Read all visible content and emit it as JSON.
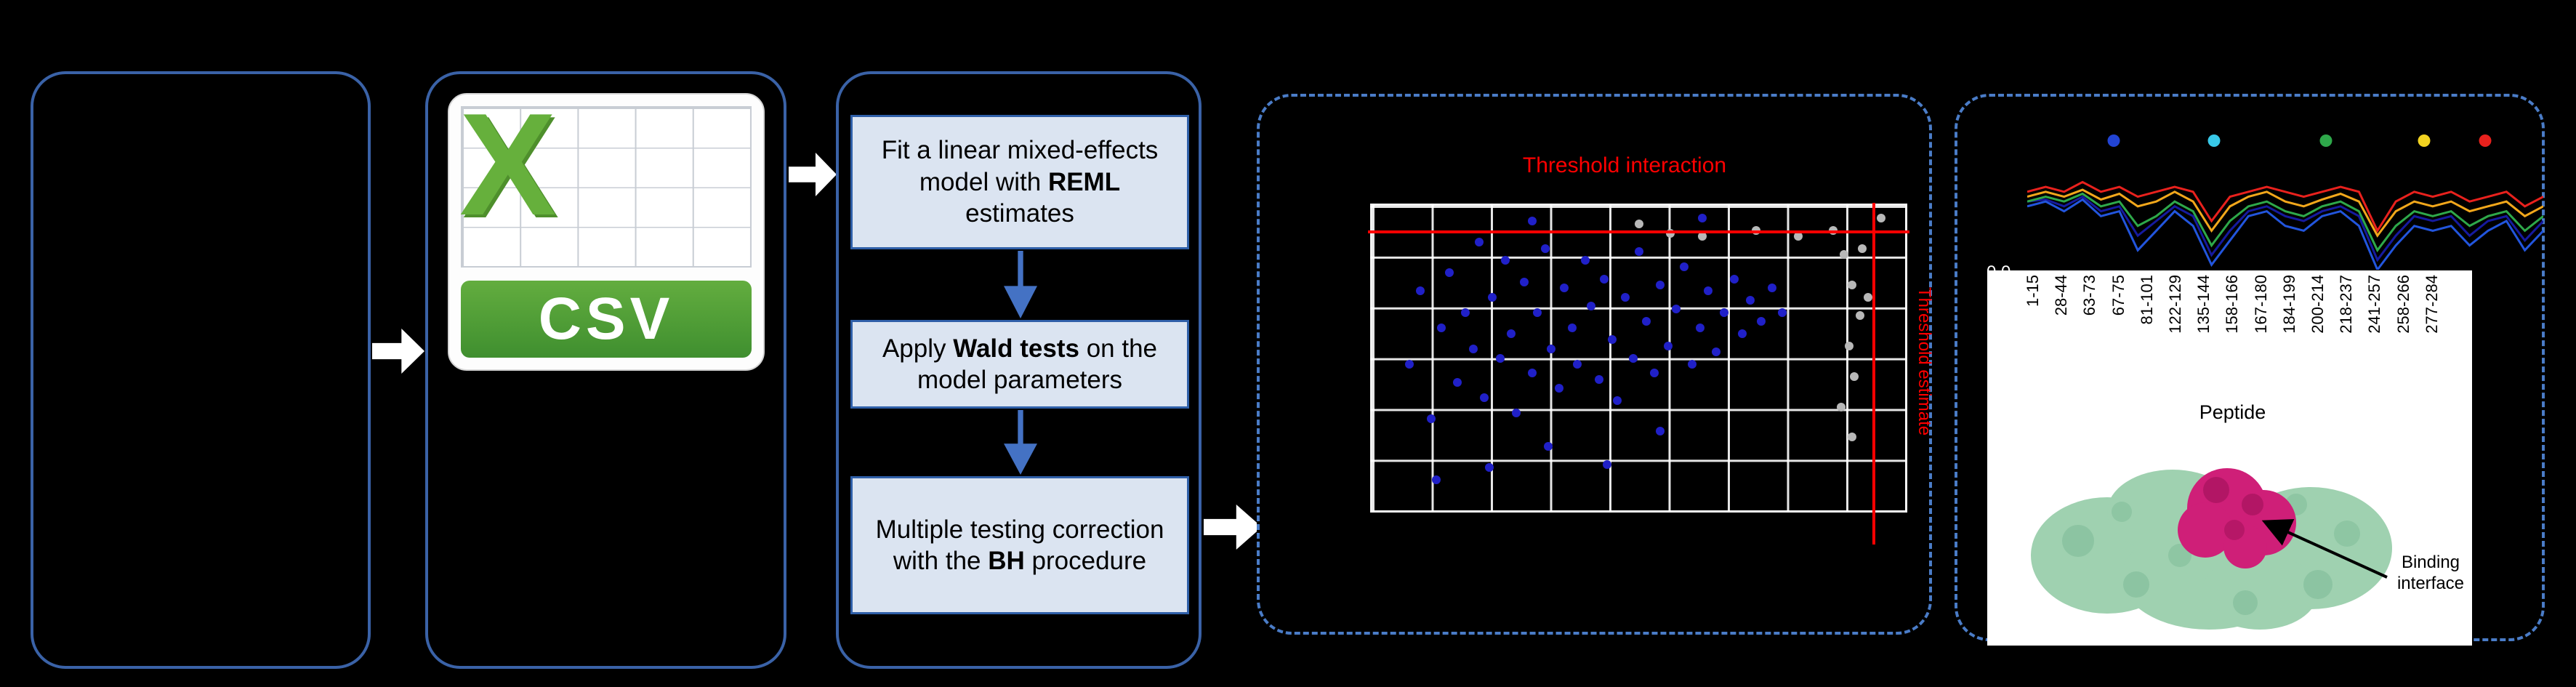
{
  "colors": {
    "panel_border": "#3a62a7",
    "dashed_border": "#4a7cc7",
    "step_fill": "#dbe4f1",
    "step_border": "#2f5fa8",
    "arrow_blue": "#4472c4",
    "threshold_red": "#ff0000",
    "csv_green": "#55a030"
  },
  "flow": {
    "csv": {
      "letter": "X",
      "label": "CSV"
    },
    "steps": [
      {
        "pre": "Fit a linear mixed-effects model with ",
        "bold": "REML",
        "post": " estimates"
      },
      {
        "pre": "Apply ",
        "bold": "Wald tests",
        "post": " on the model parameters"
      },
      {
        "pre": "Multiple testing correction with the ",
        "bold": "BH",
        "post": " procedure"
      }
    ]
  },
  "protein": {
    "annotation": "Binding interface"
  },
  "chart_data": [
    {
      "type": "scatter",
      "title": "Threshold interaction",
      "side_label": "Threshold estimate",
      "coords": "fraction of plot area, y measured from top",
      "grid": true,
      "thresholds": {
        "horizontal_y": 0.08,
        "vertical_x": 0.938
      },
      "series": [
        {
          "name": "points-blue",
          "color": "#2020c8",
          "points": [
            [
              0.07,
              0.52
            ],
            [
              0.09,
              0.28
            ],
            [
              0.11,
              0.7
            ],
            [
              0.13,
              0.4
            ],
            [
              0.145,
              0.22
            ],
            [
              0.16,
              0.58
            ],
            [
              0.175,
              0.35
            ],
            [
              0.19,
              0.47
            ],
            [
              0.2,
              0.12
            ],
            [
              0.21,
              0.63
            ],
            [
              0.225,
              0.3
            ],
            [
              0.24,
              0.5
            ],
            [
              0.25,
              0.18
            ],
            [
              0.26,
              0.42
            ],
            [
              0.27,
              0.68
            ],
            [
              0.285,
              0.25
            ],
            [
              0.3,
              0.55
            ],
            [
              0.31,
              0.35
            ],
            [
              0.325,
              0.14
            ],
            [
              0.335,
              0.47
            ],
            [
              0.35,
              0.6
            ],
            [
              0.36,
              0.27
            ],
            [
              0.375,
              0.4
            ],
            [
              0.385,
              0.52
            ],
            [
              0.4,
              0.18
            ],
            [
              0.41,
              0.33
            ],
            [
              0.425,
              0.57
            ],
            [
              0.435,
              0.24
            ],
            [
              0.45,
              0.44
            ],
            [
              0.46,
              0.64
            ],
            [
              0.475,
              0.3
            ],
            [
              0.49,
              0.5
            ],
            [
              0.5,
              0.15
            ],
            [
              0.515,
              0.38
            ],
            [
              0.53,
              0.55
            ],
            [
              0.54,
              0.26
            ],
            [
              0.555,
              0.46
            ],
            [
              0.57,
              0.34
            ],
            [
              0.585,
              0.2
            ],
            [
              0.6,
              0.52
            ],
            [
              0.615,
              0.4
            ],
            [
              0.63,
              0.28
            ],
            [
              0.645,
              0.48
            ],
            [
              0.66,
              0.35
            ],
            [
              0.68,
              0.24
            ],
            [
              0.695,
              0.42
            ],
            [
              0.71,
              0.31
            ],
            [
              0.73,
              0.38
            ],
            [
              0.75,
              0.27
            ],
            [
              0.77,
              0.35
            ],
            [
              0.54,
              0.74
            ],
            [
              0.33,
              0.79
            ],
            [
              0.22,
              0.86
            ],
            [
              0.12,
              0.9
            ],
            [
              0.44,
              0.85
            ],
            [
              0.3,
              0.05
            ],
            [
              0.62,
              0.04
            ]
          ]
        },
        {
          "name": "points-gray",
          "color": "#b8b8b8",
          "points": [
            [
              0.865,
              0.08
            ],
            [
              0.885,
              0.16
            ],
            [
              0.9,
              0.26
            ],
            [
              0.915,
              0.36
            ],
            [
              0.895,
              0.46
            ],
            [
              0.905,
              0.56
            ],
            [
              0.92,
              0.14
            ],
            [
              0.88,
              0.66
            ],
            [
              0.9,
              0.76
            ],
            [
              0.93,
              0.3
            ],
            [
              0.8,
              0.1
            ],
            [
              0.72,
              0.08
            ],
            [
              0.62,
              0.1
            ],
            [
              0.955,
              0.04
            ],
            [
              0.5,
              0.06
            ],
            [
              0.56,
              0.09
            ]
          ]
        }
      ]
    },
    {
      "type": "line",
      "xlabel": "Peptide",
      "y_tick": "0.0",
      "categories": [
        "1-15",
        "28-44",
        "63-73",
        "67-75",
        "81-101",
        "122-129",
        "135-144",
        "158-166",
        "167-180",
        "184-199",
        "200-214",
        "218-237",
        "241-257",
        "258-266",
        "277-284"
      ],
      "condition_dots": [
        {
          "color": "#2244d4",
          "x": 0.168
        },
        {
          "color": "#38c8e8",
          "x": 0.362
        },
        {
          "color": "#2ea84a",
          "x": 0.579
        },
        {
          "color": "#f2d321",
          "x": 0.769
        },
        {
          "color": "#e8211d",
          "x": 0.887
        }
      ],
      "series": [
        {
          "color": "#151a9e",
          "values": [
            0.3,
            0.28,
            0.35,
            0.25,
            0.4,
            0.35,
            0.65,
            0.5,
            0.35,
            0.45,
            0.85,
            0.6,
            0.4,
            0.35,
            0.45,
            0.5,
            0.4,
            0.35,
            0.45,
            0.9,
            0.65,
            0.45,
            0.5,
            0.45,
            0.65,
            0.5,
            0.45,
            0.7,
            0.5
          ]
        },
        {
          "color": "#2255dd",
          "values": [
            0.35,
            0.3,
            0.4,
            0.28,
            0.45,
            0.4,
            0.8,
            0.6,
            0.4,
            0.55,
            0.95,
            0.7,
            0.45,
            0.4,
            0.55,
            0.6,
            0.45,
            0.4,
            0.55,
            1.0,
            0.75,
            0.55,
            0.6,
            0.55,
            0.75,
            0.6,
            0.5,
            0.8,
            0.6
          ]
        },
        {
          "color": "#2ea84a",
          "values": [
            0.3,
            0.25,
            0.3,
            0.22,
            0.35,
            0.3,
            0.55,
            0.45,
            0.3,
            0.4,
            0.75,
            0.5,
            0.35,
            0.3,
            0.4,
            0.45,
            0.35,
            0.3,
            0.4,
            0.8,
            0.55,
            0.4,
            0.45,
            0.4,
            0.55,
            0.45,
            0.4,
            0.6,
            0.45
          ]
        },
        {
          "color": "#f2a71b",
          "values": [
            0.25,
            0.2,
            0.25,
            0.18,
            0.28,
            0.22,
            0.35,
            0.3,
            0.2,
            0.3,
            0.6,
            0.35,
            0.25,
            0.2,
            0.3,
            0.35,
            0.28,
            0.22,
            0.3,
            0.65,
            0.4,
            0.3,
            0.35,
            0.3,
            0.4,
            0.35,
            0.3,
            0.45,
            0.35
          ]
        },
        {
          "color": "#e8211d",
          "values": [
            0.2,
            0.15,
            0.2,
            0.1,
            0.2,
            0.15,
            0.25,
            0.2,
            0.15,
            0.2,
            0.5,
            0.25,
            0.2,
            0.15,
            0.2,
            0.25,
            0.2,
            0.15,
            0.2,
            0.6,
            0.3,
            0.2,
            0.25,
            0.2,
            0.3,
            0.25,
            0.2,
            0.35,
            0.25
          ]
        }
      ]
    }
  ]
}
